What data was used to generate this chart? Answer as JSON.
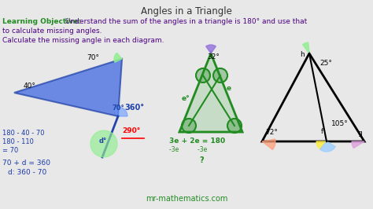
{
  "title": "Angles in a Triangle",
  "title_color": "#333333",
  "bg_color": "#e8e8e8",
  "learning_objective_label": "Learning Objective:",
  "learning_objective_color": "#228B22",
  "learning_objective_text": " Understand the sum of the angles in a triangle is 180° and use that",
  "learning_objective_text2": "to calculate missing angles.",
  "learning_objective_text_color": "#4B0082",
  "calculate_text": "Calculate the missing angle in each diagram.",
  "calculate_text_color": "#4B0082",
  "watermark": "mr-mathematics.com",
  "watermark_color": "#228B22"
}
